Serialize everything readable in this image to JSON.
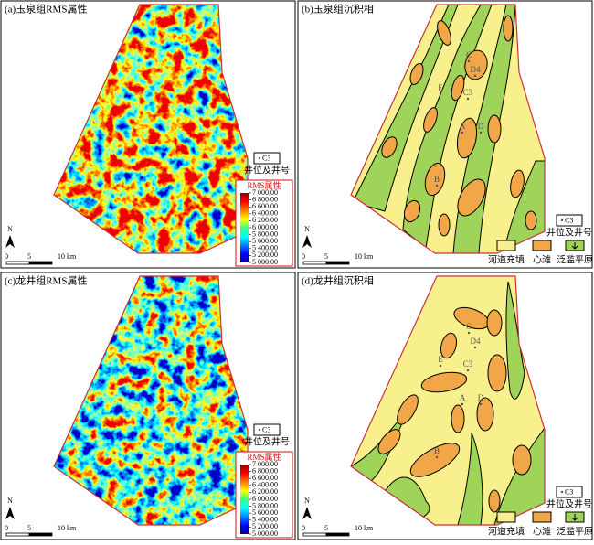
{
  "panels": [
    {
      "kind": "rms",
      "title": "(a)玉泉组RMS属性",
      "well_legend": {
        "symbol_label": "C3",
        "caption": "井位及井号"
      },
      "colorbar": {
        "title": "RMS属性",
        "labels": [
          "7 000.00",
          "6 800.00",
          "6 600.00",
          "6 400.00",
          "6 200.00",
          "6 000.00",
          "5 800.00",
          "5 600.00",
          "5 400.00",
          "5 200.00",
          "5 000.00"
        ]
      },
      "north": "N",
      "scale": [
        "0",
        "5",
        "10 km"
      ]
    },
    {
      "kind": "facies",
      "title": "(b)玉泉组沉积相",
      "wells": [
        "C",
        "D4",
        "E",
        "C3",
        "A",
        "D",
        "B"
      ],
      "well_legend": {
        "symbol_label": "C3",
        "caption": "井位及井号"
      },
      "legend": [
        "河道充填",
        "心滩",
        "泛滥平原"
      ],
      "north": "N",
      "scale": [
        "0",
        "5",
        "10 km"
      ]
    },
    {
      "kind": "rms",
      "title": "(c)龙井组RMS属性",
      "well_legend": {
        "symbol_label": "C3",
        "caption": "井位及井号"
      },
      "colorbar": {
        "title": "RMS属性",
        "labels": [
          "7 000.00",
          "6 800.00",
          "6 600.00",
          "6 400.00",
          "6 200.00",
          "6 000.00",
          "5 800.00",
          "5 600.00",
          "5 400.00",
          "5 200.00",
          "5 000.00"
        ]
      },
      "north": "N",
      "scale": [
        "0",
        "5",
        "10 km"
      ]
    },
    {
      "kind": "facies",
      "title": "(d)龙井组沉积相",
      "wells": [
        "C",
        "D4",
        "E",
        "C3",
        "A",
        "D",
        "B"
      ],
      "well_legend": {
        "symbol_label": "C3",
        "caption": "井位及井号"
      },
      "legend": [
        "河道充填",
        "心滩",
        "泛滥平原"
      ],
      "north": "N",
      "scale": [
        "0",
        "5",
        "10 km"
      ]
    }
  ]
}
